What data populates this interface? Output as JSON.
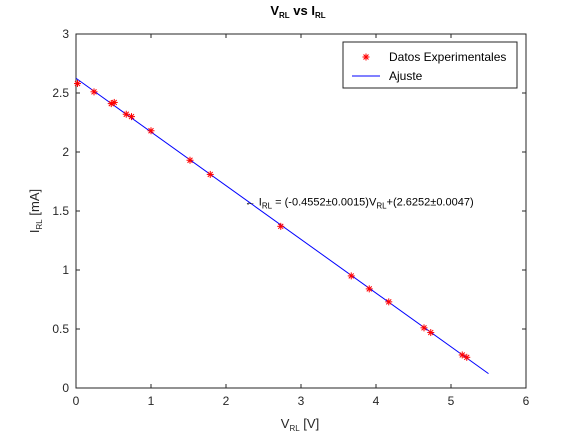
{
  "chart_data": {
    "type": "scatter",
    "title": {
      "main": "V",
      "sub": "RL",
      "mid": " vs I",
      "sub2": "RL"
    },
    "xlabel": {
      "main": "V",
      "sub": "RL",
      "unit": " [V]"
    },
    "ylabel": {
      "main": "I",
      "sub": "RL",
      "unit": " [mA]"
    },
    "xlim": [
      0,
      6
    ],
    "ylim": [
      0,
      3
    ],
    "xticks": [
      "0",
      "1",
      "2",
      "3",
      "4",
      "5",
      "6"
    ],
    "yticks": [
      "0",
      "0.5",
      "1",
      "1.5",
      "2",
      "2.5",
      "3"
    ],
    "grid": false,
    "legend_position": "top-right",
    "series": [
      {
        "name": "Datos Experimentales",
        "kind": "scatter",
        "marker": "asterisk",
        "color": "#ff0000",
        "x": [
          0.02,
          0.24,
          0.47,
          0.51,
          0.67,
          0.74,
          1.0,
          1.52,
          1.79,
          2.73,
          3.67,
          3.91,
          4.17,
          4.64,
          4.73,
          5.15,
          5.21
        ],
        "y": [
          2.58,
          2.51,
          2.41,
          2.42,
          2.32,
          2.3,
          2.18,
          1.93,
          1.81,
          1.37,
          0.95,
          0.84,
          0.73,
          0.51,
          0.47,
          0.28,
          0.26
        ]
      },
      {
        "name": "Ajuste",
        "kind": "line",
        "color": "#0000ff",
        "slope": -0.4552,
        "intercept": 2.6252,
        "x_range": [
          0,
          5.5
        ]
      }
    ],
    "annotation": {
      "arrow": "←",
      "i_main": " I",
      "i_sub": "RL",
      "mid": " = (-0.4552±0.0015)V",
      "v_sub": "RL",
      "tail": "+(2.6252±0.0047)",
      "anchor_x": 2.45,
      "anchor_y": 1.58
    }
  }
}
